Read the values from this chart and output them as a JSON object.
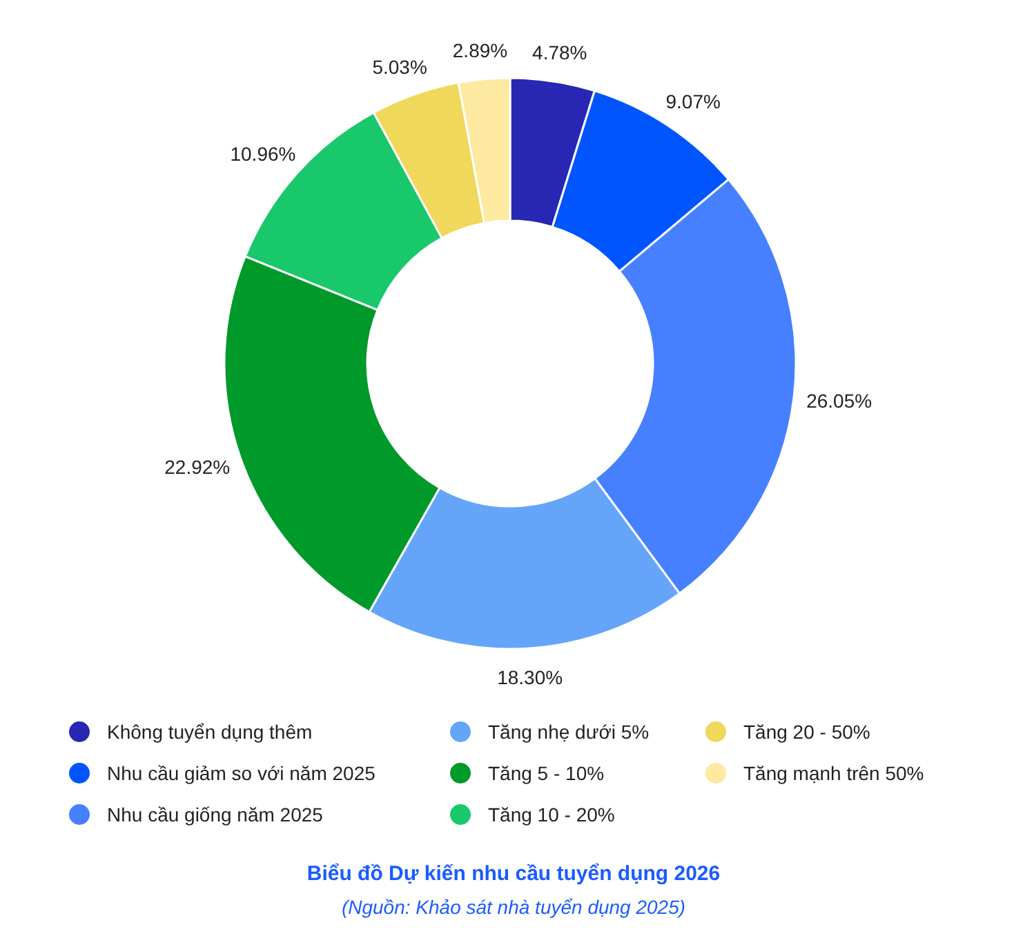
{
  "chart_data": {
    "type": "donut",
    "title": "Biểu đồ Dự kiến nhu cầu tuyển dụng 2026",
    "annotations": [
      "(Nguồn: Khảo sát nhà tuyển dụng 2025)"
    ],
    "categories": [
      "Không tuyển dụng thêm",
      "Nhu cầu giảm so với năm 2025",
      "Nhu cầu giống năm 2025",
      "Tăng nhẹ dưới 5%",
      "Tăng 5 - 10%",
      "Tăng 10 - 20%",
      "Tăng 20 - 50%",
      "Tăng mạnh trên 50%"
    ],
    "values": [
      4.78,
      9.07,
      26.05,
      18.3,
      22.92,
      10.96,
      5.03,
      2.89
    ],
    "colors": [
      "#2727b3",
      "#0055ff",
      "#4680ff",
      "#64a5fa",
      "#009a2a",
      "#1ac86c",
      "#efd85a",
      "#fde9a0"
    ],
    "value_labels": [
      "4.78%",
      "9.07%",
      "26.05%",
      "18.30%",
      "22.92%",
      "10.96%",
      "5.03%",
      "2.89%"
    ],
    "legend": "bottom"
  }
}
